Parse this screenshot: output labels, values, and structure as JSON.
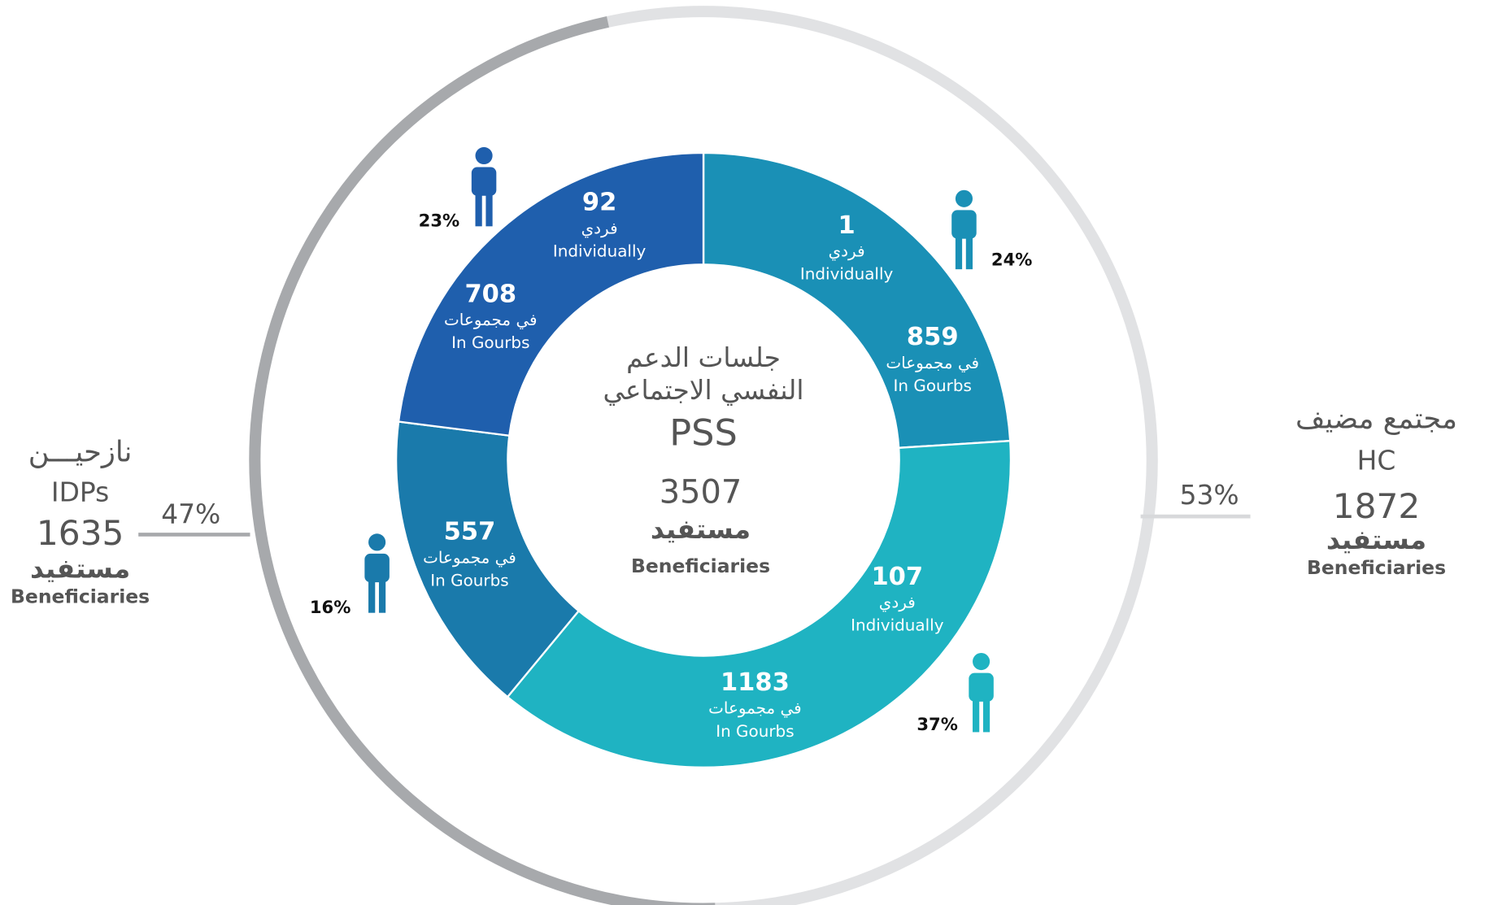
{
  "chart_data": {
    "type": "donut",
    "title_lines": [
      "جلسات الدعم",
      "النفسي الاجتماعي"
    ],
    "subtitle": "PSS",
    "total": 3507,
    "count_label": "مستفيد",
    "count_label_en": "Beneficiaries",
    "individual_label": "فردي",
    "individual_label_en": "Individually",
    "group_label": "في مجموعات",
    "group_label_en": "In Gourbs",
    "outer": [
      {
        "name": "مجتمع مضيف",
        "name_en": "HC",
        "value": 53,
        "value_label": "53%",
        "count": 1872,
        "color": "#e1e2e4"
      },
      {
        "name": "نازحيـــن",
        "name_en": "IDPs",
        "value": 47,
        "value_label": "47%",
        "count": 1635,
        "color": "#a7a9ac"
      }
    ],
    "segments": [
      {
        "value": 24,
        "value_label": "24%",
        "individual": 1,
        "group": 859,
        "color": "#1a90b6"
      },
      {
        "value": 37,
        "value_label": "37%",
        "individual": 107,
        "group": 1183,
        "color": "#1fb3c2"
      },
      {
        "value": 16,
        "value_label": "16%",
        "group": 557,
        "color": "#1a7aab"
      },
      {
        "value": 23,
        "value_label": "23%",
        "individual": 92,
        "group": 708,
        "color": "#1f5fad"
      }
    ]
  }
}
